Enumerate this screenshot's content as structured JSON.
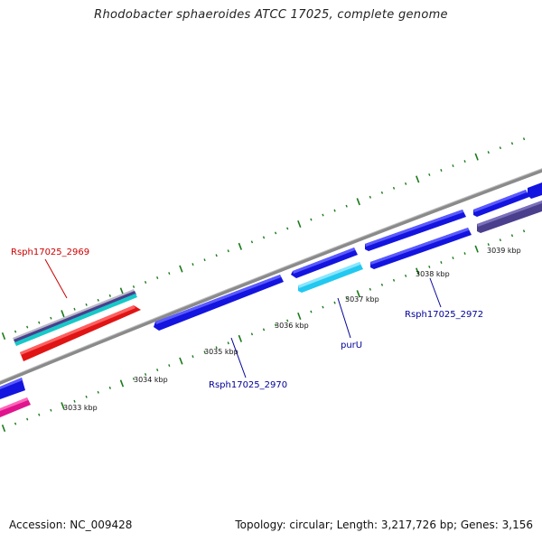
{
  "title": "Rhodobacter sphaeroides ATCC 17025, complete genome",
  "footer": {
    "accession": "Accession: NC_009428",
    "summary": "Topology: circular; Length: 3,217,726 bp; Genes: 3,156"
  },
  "ticks": [
    "3033 kbp",
    "3034 kbp",
    "3035 kbp",
    "3036 kbp",
    "3037 kbp",
    "3038 kbp",
    "3039 kbp"
  ],
  "gene_labels": [
    {
      "id": "rsph17025_2969",
      "text": "Rsph17025_2969",
      "color": "#cc0000"
    },
    {
      "id": "rsph17025_2970",
      "text": "Rsph17025_2970",
      "color": "#000099"
    },
    {
      "id": "purU",
      "text": "purU",
      "color": "#000099"
    },
    {
      "id": "rsph17025_2972",
      "text": "Rsph17025_2972",
      "color": "#000099"
    }
  ],
  "colors": {
    "backbone": "#8a8a8a",
    "tick": "#1a7a1a",
    "gene_forward": "#1414e0",
    "gene_reverse": "#e01414",
    "gene_light": "#22c8f0",
    "gene_dark": "#4a3f8c",
    "gene_magenta": "#e0148c",
    "gene_cyan": "#18c8c8"
  }
}
